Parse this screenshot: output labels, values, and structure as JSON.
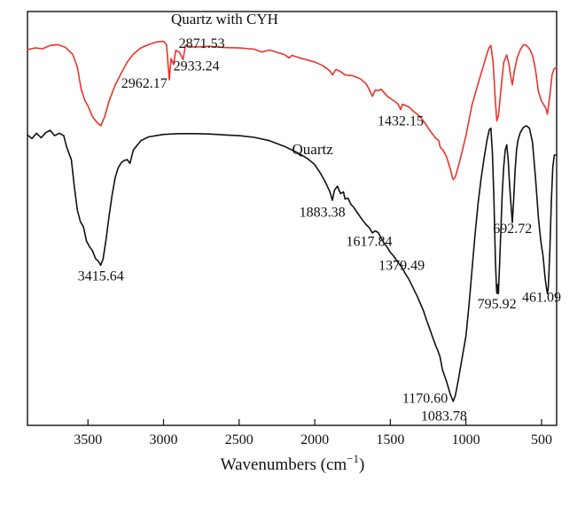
{
  "chart_data": {
    "type": "line",
    "title": "",
    "xlabel": "Wavenumbers (cm",
    "xlabel_superscript": "−1",
    "xlabel_close": ")",
    "ylabel": "",
    "x_reversed": true,
    "xlim": [
      3900,
      400
    ],
    "ylim": [
      0,
      100
    ],
    "x_ticks": [
      3500,
      3000,
      2500,
      2000,
      1500,
      1000,
      500
    ],
    "y_ticks_shown": false,
    "grid": false,
    "legend": "none",
    "series": [
      {
        "name": "Quartz with CYH",
        "color": "#e8342a",
        "label_x": 2950,
        "label_y": 97,
        "points": [
          [
            3900,
            90.8
          ],
          [
            3850,
            91.2
          ],
          [
            3800,
            91.0
          ],
          [
            3750,
            91.8
          ],
          [
            3700,
            92.0
          ],
          [
            3650,
            91.4
          ],
          [
            3600,
            89.6
          ],
          [
            3570,
            86.5
          ],
          [
            3545,
            81.2
          ],
          [
            3520,
            78.5
          ],
          [
            3500,
            77.2
          ],
          [
            3470,
            74.6
          ],
          [
            3440,
            73.2
          ],
          [
            3415,
            72.4
          ],
          [
            3390,
            74.5
          ],
          [
            3360,
            78.4
          ],
          [
            3320,
            82.2
          ],
          [
            3280,
            85.1
          ],
          [
            3240,
            87.8
          ],
          [
            3200,
            89.7
          ],
          [
            3150,
            91.2
          ],
          [
            3100,
            92.0
          ],
          [
            3050,
            92.6
          ],
          [
            3000,
            92.8
          ],
          [
            2980,
            92.0
          ],
          [
            2962,
            83.5
          ],
          [
            2950,
            88.6
          ],
          [
            2933,
            87.2
          ],
          [
            2920,
            90.6
          ],
          [
            2895,
            90.2
          ],
          [
            2871,
            88.4
          ],
          [
            2855,
            91.8
          ],
          [
            2800,
            91.4
          ],
          [
            2700,
            91.6
          ],
          [
            2600,
            91.3
          ],
          [
            2500,
            91.2
          ],
          [
            2400,
            90.9
          ],
          [
            2350,
            90.2
          ],
          [
            2300,
            90.7
          ],
          [
            2200,
            89.6
          ],
          [
            2170,
            88.8
          ],
          [
            2150,
            89.4
          ],
          [
            2100,
            88.8
          ],
          [
            2000,
            87.8
          ],
          [
            1950,
            87.0
          ],
          [
            1900,
            85.7
          ],
          [
            1883,
            84.7
          ],
          [
            1860,
            86.0
          ],
          [
            1830,
            85.5
          ],
          [
            1800,
            84.7
          ],
          [
            1750,
            84.5
          ],
          [
            1700,
            83.8
          ],
          [
            1660,
            82.5
          ],
          [
            1640,
            81.2
          ],
          [
            1618,
            79.5
          ],
          [
            1600,
            81.0
          ],
          [
            1580,
            80.9
          ],
          [
            1560,
            81.2
          ],
          [
            1520,
            79.5
          ],
          [
            1480,
            78.5
          ],
          [
            1450,
            77.7
          ],
          [
            1432,
            76.3
          ],
          [
            1420,
            77.6
          ],
          [
            1380,
            77.0
          ],
          [
            1350,
            76.0
          ],
          [
            1300,
            74.5
          ],
          [
            1270,
            73.0
          ],
          [
            1240,
            71.3
          ],
          [
            1200,
            69.4
          ],
          [
            1180,
            68.8
          ],
          [
            1170,
            67.2
          ],
          [
            1150,
            66.4
          ],
          [
            1130,
            65.0
          ],
          [
            1110,
            62.8
          ],
          [
            1100,
            61.5
          ],
          [
            1090,
            60.0
          ],
          [
            1084,
            59.4
          ],
          [
            1070,
            60.0
          ],
          [
            1050,
            62.6
          ],
          [
            1030,
            65.4
          ],
          [
            1000,
            70.0
          ],
          [
            960,
            77.4
          ],
          [
            920,
            82.5
          ],
          [
            880,
            87.4
          ],
          [
            850,
            91.0
          ],
          [
            835,
            91.8
          ],
          [
            820,
            87.6
          ],
          [
            805,
            78.2
          ],
          [
            796,
            73.6
          ],
          [
            785,
            74.8
          ],
          [
            770,
            80.5
          ],
          [
            750,
            87.7
          ],
          [
            730,
            89.5
          ],
          [
            715,
            87.2
          ],
          [
            705,
            84.5
          ],
          [
            693,
            82.3
          ],
          [
            680,
            85.5
          ],
          [
            660,
            89.0
          ],
          [
            640,
            90.8
          ],
          [
            620,
            92.0
          ],
          [
            600,
            91.8
          ],
          [
            580,
            91.0
          ],
          [
            560,
            89.5
          ],
          [
            540,
            86.0
          ],
          [
            520,
            80.6
          ],
          [
            500,
            78.4
          ],
          [
            470,
            76.5
          ],
          [
            461,
            75.2
          ],
          [
            445,
            79.6
          ],
          [
            430,
            84.8
          ],
          [
            415,
            86.2
          ],
          [
            400,
            86.5
          ]
        ]
      },
      {
        "name": "Quartz",
        "color": "#111111",
        "label_x": 2150,
        "label_y": 65.5,
        "points": [
          [
            3900,
            70.2
          ],
          [
            3870,
            69.3
          ],
          [
            3840,
            70.6
          ],
          [
            3810,
            69.5
          ],
          [
            3780,
            70.7
          ],
          [
            3750,
            71.3
          ],
          [
            3720,
            70.0
          ],
          [
            3690,
            70.6
          ],
          [
            3660,
            70.0
          ],
          [
            3640,
            67.2
          ],
          [
            3610,
            64.2
          ],
          [
            3590,
            57.6
          ],
          [
            3570,
            52.0
          ],
          [
            3550,
            49.2
          ],
          [
            3530,
            48.0
          ],
          [
            3510,
            44.6
          ],
          [
            3490,
            43.2
          ],
          [
            3470,
            42.2
          ],
          [
            3450,
            40.3
          ],
          [
            3430,
            39.6
          ],
          [
            3416,
            38.7
          ],
          [
            3400,
            40.2
          ],
          [
            3380,
            45.0
          ],
          [
            3360,
            50.6
          ],
          [
            3340,
            55.7
          ],
          [
            3320,
            59.8
          ],
          [
            3300,
            62.2
          ],
          [
            3280,
            63.5
          ],
          [
            3260,
            64.0
          ],
          [
            3240,
            64.2
          ],
          [
            3222,
            63.3
          ],
          [
            3200,
            66.5
          ],
          [
            3150,
            68.8
          ],
          [
            3100,
            69.7
          ],
          [
            3050,
            70.0
          ],
          [
            3000,
            70.3
          ],
          [
            2900,
            70.5
          ],
          [
            2800,
            70.5
          ],
          [
            2700,
            70.4
          ],
          [
            2600,
            70.2
          ],
          [
            2500,
            70.0
          ],
          [
            2400,
            69.6
          ],
          [
            2300,
            68.8
          ],
          [
            2200,
            67.4
          ],
          [
            2150,
            66.5
          ],
          [
            2100,
            65.6
          ],
          [
            2050,
            64.5
          ],
          [
            2000,
            63.0
          ],
          [
            1960,
            60.8
          ],
          [
            1930,
            58.8
          ],
          [
            1900,
            56.5
          ],
          [
            1883,
            54.4
          ],
          [
            1870,
            56.8
          ],
          [
            1850,
            57.8
          ],
          [
            1830,
            56.0
          ],
          [
            1810,
            56.4
          ],
          [
            1800,
            54.7
          ],
          [
            1780,
            54.9
          ],
          [
            1760,
            53.4
          ],
          [
            1740,
            52.6
          ],
          [
            1720,
            51.5
          ],
          [
            1700,
            50.4
          ],
          [
            1680,
            49.4
          ],
          [
            1660,
            48.5
          ],
          [
            1640,
            47.8
          ],
          [
            1618,
            46.5
          ],
          [
            1600,
            47.0
          ],
          [
            1580,
            46.6
          ],
          [
            1560,
            45.2
          ],
          [
            1540,
            44.0
          ],
          [
            1520,
            43.0
          ],
          [
            1500,
            41.8
          ],
          [
            1480,
            41.0
          ],
          [
            1450,
            39.4
          ],
          [
            1420,
            38.0
          ],
          [
            1400,
            36.6
          ],
          [
            1380,
            35.5
          ],
          [
            1360,
            34.0
          ],
          [
            1340,
            32.5
          ],
          [
            1320,
            31.0
          ],
          [
            1300,
            29.3
          ],
          [
            1280,
            27.6
          ],
          [
            1260,
            25.4
          ],
          [
            1240,
            23.4
          ],
          [
            1220,
            21.3
          ],
          [
            1200,
            19.3
          ],
          [
            1185,
            18.0
          ],
          [
            1171,
            16.5
          ],
          [
            1155,
            13.4
          ],
          [
            1140,
            11.8
          ],
          [
            1130,
            10.8
          ],
          [
            1120,
            9.6
          ],
          [
            1110,
            8.3
          ],
          [
            1100,
            7.2
          ],
          [
            1090,
            6.3
          ],
          [
            1084,
            5.8
          ],
          [
            1070,
            7.2
          ],
          [
            1050,
            11.0
          ],
          [
            1030,
            15.2
          ],
          [
            1000,
            21.6
          ],
          [
            980,
            29.0
          ],
          [
            960,
            37.5
          ],
          [
            940,
            46.0
          ],
          [
            920,
            53.5
          ],
          [
            900,
            59.5
          ],
          [
            880,
            64.5
          ],
          [
            860,
            69.0
          ],
          [
            845,
            71.5
          ],
          [
            835,
            71.8
          ],
          [
            825,
            66.0
          ],
          [
            815,
            55.0
          ],
          [
            805,
            40.0
          ],
          [
            798,
            33.5
          ],
          [
            796,
            31.9
          ],
          [
            790,
            34.0
          ],
          [
            785,
            31.8
          ],
          [
            780,
            36.5
          ],
          [
            770,
            46.0
          ],
          [
            760,
            56.0
          ],
          [
            750,
            62.5
          ],
          [
            740,
            66.5
          ],
          [
            730,
            67.8
          ],
          [
            720,
            64.0
          ],
          [
            710,
            57.5
          ],
          [
            700,
            52.5
          ],
          [
            693,
            49.0
          ],
          [
            685,
            54.0
          ],
          [
            675,
            61.5
          ],
          [
            665,
            66.6
          ],
          [
            655,
            69.0
          ],
          [
            640,
            70.8
          ],
          [
            620,
            72.0
          ],
          [
            600,
            72.4
          ],
          [
            580,
            71.8
          ],
          [
            560,
            68.5
          ],
          [
            540,
            60.0
          ],
          [
            520,
            50.0
          ],
          [
            505,
            44.6
          ],
          [
            490,
            41.0
          ],
          [
            475,
            35.2
          ],
          [
            468,
            33.4
          ],
          [
            461,
            31.8
          ],
          [
            455,
            33.4
          ],
          [
            445,
            42.0
          ],
          [
            435,
            54.0
          ],
          [
            425,
            62.5
          ],
          [
            415,
            65.3
          ],
          [
            400,
            65.3
          ]
        ]
      }
    ],
    "annotations": [
      {
        "text": "2871.53",
        "x": 2900,
        "y": 91.2,
        "anchor": "start"
      },
      {
        "text": "2933.24",
        "x": 2935,
        "y": 85.8,
        "anchor": "start"
      },
      {
        "text": "2962.17",
        "x": 2975,
        "y": 81.6,
        "anchor": "end"
      },
      {
        "text": "1432.15",
        "x": 1432,
        "y": 72.5,
        "anchor": "middle"
      },
      {
        "text": "1883.38",
        "x": 1950,
        "y": 50.4,
        "anchor": "middle"
      },
      {
        "text": "1617.84",
        "x": 1640,
        "y": 43.4,
        "anchor": "middle"
      },
      {
        "text": "1379.49",
        "x": 1425,
        "y": 37.6,
        "anchor": "middle"
      },
      {
        "text": "3415.64",
        "x": 3415,
        "y": 35.0,
        "anchor": "middle"
      },
      {
        "text": "692.72",
        "x": 692,
        "y": 46.5,
        "anchor": "middle"
      },
      {
        "text": "461.09",
        "x": 500,
        "y": 29.9,
        "anchor": "middle"
      },
      {
        "text": "795.92",
        "x": 795,
        "y": 28.3,
        "anchor": "middle"
      },
      {
        "text": "1170.60",
        "x": 1270,
        "y": 5.5,
        "anchor": "middle"
      },
      {
        "text": "1083.78",
        "x": 1145,
        "y": 1.2,
        "anchor": "middle"
      }
    ]
  }
}
